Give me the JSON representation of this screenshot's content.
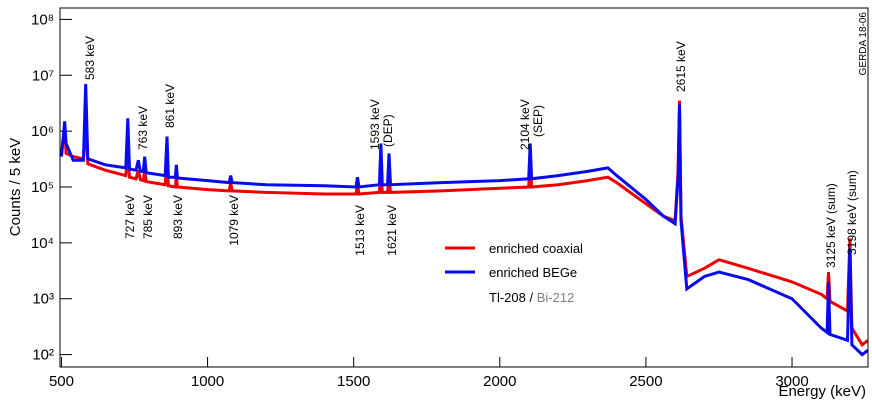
{
  "chart_data": {
    "type": "line",
    "ylabel": "Counts / 5 keV",
    "xlabel": "Energy (keV)",
    "label": "GERDA 18-06",
    "log_y": true,
    "xlim": [
      495,
      3260
    ],
    "xticks": [
      500,
      1000,
      1500,
      2000,
      2500,
      3000
    ],
    "ylim": [
      60,
      160000000
    ],
    "yticks": [
      {
        "value": 100,
        "label": "10²"
      },
      {
        "value": 1000,
        "label": "10³"
      },
      {
        "value": 10000,
        "label": "10⁴"
      },
      {
        "value": 100000,
        "label": "10⁵"
      },
      {
        "value": 1000000,
        "label": "10⁶"
      },
      {
        "value": 10000000,
        "label": "10⁷"
      },
      {
        "value": 100000000,
        "label": "10⁸"
      }
    ],
    "x": [
      500,
      511,
      516,
      540,
      575,
      583,
      590,
      650,
      720,
      727,
      733,
      755,
      763,
      770,
      780,
      785,
      790,
      855,
      861,
      866,
      890,
      893,
      897,
      1000,
      1074,
      1079,
      1084,
      1200,
      1400,
      1508,
      1513,
      1518,
      1588,
      1593,
      1598,
      1616,
      1621,
      1626,
      1800,
      2000,
      2099,
      2104,
      2109,
      2200,
      2300,
      2370,
      2400,
      2500,
      2560,
      2600,
      2610,
      2615,
      2620,
      2640,
      2700,
      2750,
      2850,
      3000,
      3100,
      3120,
      3125,
      3130,
      3190,
      3198,
      3205,
      3240,
      3260
    ],
    "series": [
      {
        "name": "enriched coaxial",
        "color": "#ee0000",
        "values": [
          400000,
          1200000,
          400000,
          350000,
          320000,
          1500000,
          260000,
          200000,
          160000,
          400000,
          150000,
          140000,
          200000,
          135000,
          130000,
          200000,
          125000,
          110000,
          300000,
          105000,
          100000,
          160000,
          100000,
          90000,
          85000,
          120000,
          85000,
          80000,
          75000,
          75000,
          110000,
          75000,
          80000,
          200000,
          80000,
          80000,
          150000,
          80000,
          85000,
          95000,
          100000,
          400000,
          100000,
          110000,
          130000,
          150000,
          120000,
          50000,
          30000,
          25000,
          200000,
          3500000,
          30000,
          2500,
          3500,
          5000,
          3500,
          2000,
          1200,
          1000,
          3000,
          900,
          600,
          12000,
          300,
          150,
          180
        ]
      },
      {
        "name": "enriched BEGe",
        "color": "#0a0aee",
        "values": [
          350000,
          1500000,
          600000,
          300000,
          300000,
          7000000,
          320000,
          250000,
          220000,
          1700000,
          210000,
          200000,
          300000,
          190000,
          190000,
          350000,
          180000,
          160000,
          800000,
          150000,
          150000,
          250000,
          145000,
          130000,
          120000,
          160000,
          120000,
          110000,
          105000,
          100000,
          150000,
          100000,
          110000,
          600000,
          110000,
          110000,
          400000,
          110000,
          120000,
          130000,
          140000,
          600000,
          140000,
          160000,
          190000,
          220000,
          160000,
          60000,
          30000,
          22000,
          150000,
          3000000,
          25000,
          1500,
          2500,
          3000,
          2200,
          1000,
          300,
          250,
          2000,
          230,
          180,
          8000,
          150,
          100,
          120
        ]
      }
    ],
    "annotations": [
      {
        "text": [
          "583 keV"
        ],
        "color": "#000000"
      },
      {
        "text": [
          "763 keV"
        ],
        "color": "#000000"
      },
      {
        "text": [
          "861 keV"
        ],
        "color": "#000000"
      },
      {
        "text": [
          "1593 keV",
          "(DEP)"
        ],
        "color": "#000000"
      },
      {
        "text": [
          "2104 keV",
          "(SEP)"
        ],
        "color": "#000000"
      },
      {
        "text": [
          "2615 keV"
        ],
        "color": "#000000"
      },
      {
        "text": [
          "3125 keV (sum)"
        ],
        "color": "#000000"
      },
      {
        "text": [
          "3198 keV (sum)"
        ],
        "color": "#000000"
      },
      {
        "text": [
          "727 keV"
        ],
        "color": "#808080"
      },
      {
        "text": [
          "785 keV"
        ],
        "color": "#808080"
      },
      {
        "text": [
          "893 keV"
        ],
        "color": "#808080"
      },
      {
        "text": [
          "1079 keV"
        ],
        "color": "#808080"
      },
      {
        "text": [
          "1513 keV"
        ],
        "color": "#808080"
      },
      {
        "text": [
          "1621 keV"
        ],
        "color": "#808080"
      }
    ],
    "isotopes": [
      {
        "text": "Tl-208",
        "color": "#000000"
      },
      {
        "text": "Bi-212",
        "color": "#808080"
      }
    ],
    "isotope_separator": "/"
  }
}
